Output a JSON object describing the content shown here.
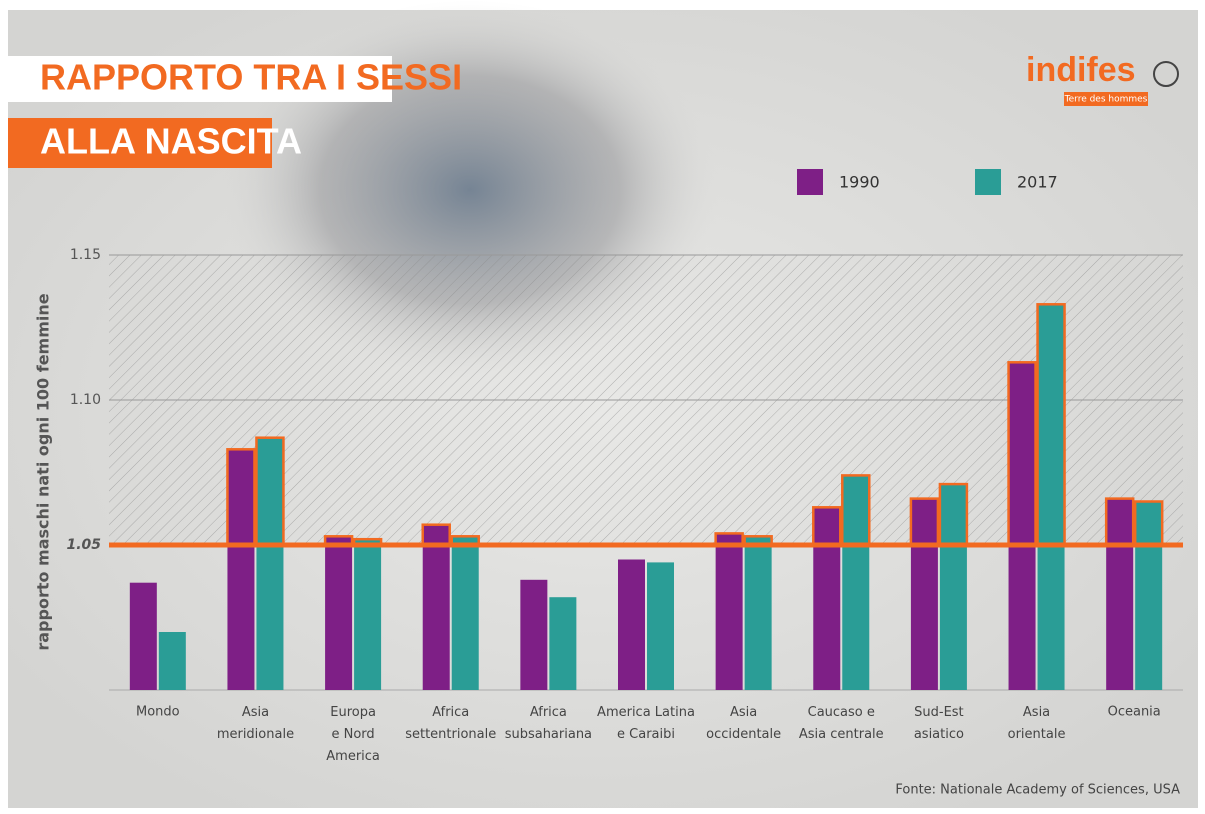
{
  "chart_data": {
    "type": "bar",
    "title": "RAPPORTO TRA I SESSI",
    "subtitle": "ALLA NASCITA",
    "logo": "indifes",
    "logo_sub": "Terre des hommes",
    "y_label": "rapporto maschi nati ogni 100 femmine",
    "source": "Fonte: Nationale Academy of Sciences, USA",
    "categories": [
      "Mondo",
      "Asia\nmeridionale",
      "Europa\ne Nord\nAmerica",
      "Africa\nsettentrionale",
      "Africa\nsubsahariana",
      "America Latina\ne Caraibi",
      "Asia\noccidentale",
      "Caucaso e\nAsia centrale",
      "Sud-Est\nasiatico",
      "Asia\norientale",
      "Oceania"
    ],
    "series": [
      {
        "name": "1990",
        "color": "#7e1f86",
        "values": [
          1.037,
          1.083,
          1.053,
          1.057,
          1.038,
          1.045,
          1.054,
          1.063,
          1.066,
          1.113,
          1.066
        ]
      },
      {
        "name": "2017",
        "color": "#2a9d96",
        "values": [
          1.02,
          1.087,
          1.052,
          1.053,
          1.032,
          1.044,
          1.053,
          1.074,
          1.071,
          1.133,
          1.065
        ]
      }
    ],
    "ylim": [
      1.0,
      1.15
    ],
    "yticks": [
      {
        "value": 1.1,
        "label": "1.10"
      },
      1.05,
      1.15
    ],
    "reference_line": 1.05,
    "reference_color": "#f26a21",
    "grid": true,
    "legend": "top"
  }
}
